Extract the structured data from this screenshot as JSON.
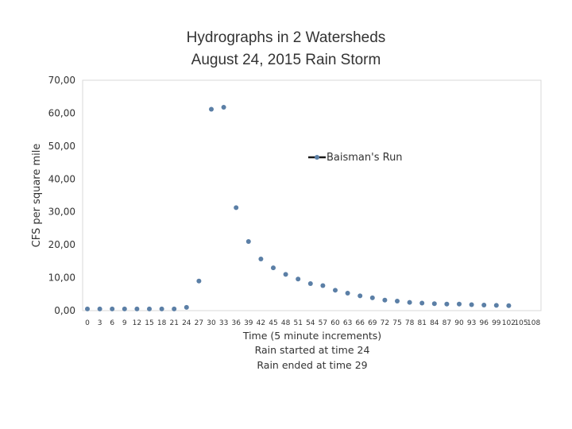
{
  "chart_data": {
    "type": "scatter",
    "title_lines": [
      "Hydrographs in 2 Watersheds",
      "August 24, 2015 Rain Storm"
    ],
    "ylabel": "CFS per square mile",
    "xlabel_lines": [
      "Time (5 minute increments)",
      "Rain started at time 24",
      "Rain ended at time 29"
    ],
    "ylim": [
      0,
      70
    ],
    "yticks": [
      0,
      10,
      20,
      30,
      40,
      50,
      60,
      70
    ],
    "ytick_labels": [
      "0,00",
      "10,00",
      "20,00",
      "30,00",
      "40,00",
      "50,00",
      "60,00",
      "70,00"
    ],
    "xlim": [
      0,
      108
    ],
    "xtick_labels": [
      "0",
      "3",
      "6",
      "9",
      "12",
      "15",
      "18",
      "21",
      "24",
      "27",
      "30",
      "33",
      "36",
      "39",
      "42",
      "45",
      "48",
      "51",
      "54",
      "57",
      "60",
      "63",
      "66",
      "69",
      "72",
      "75",
      "78",
      "81",
      "84",
      "87",
      "90",
      "93",
      "96",
      "99",
      "102",
      "105",
      "108"
    ],
    "grid": false,
    "legend_position": "upper-right",
    "series": [
      {
        "name": "Baisman's Run",
        "color": "#5b7fa6",
        "x": [
          0,
          3,
          6,
          9,
          12,
          15,
          18,
          21,
          24,
          27,
          30,
          33,
          36,
          39,
          42,
          45,
          48,
          51,
          54,
          57,
          60,
          63,
          66,
          69,
          72,
          75,
          78,
          81,
          84,
          87,
          90,
          93,
          96,
          99,
          102
        ],
        "y": [
          0.5,
          0.5,
          0.5,
          0.5,
          0.5,
          0.5,
          0.5,
          0.5,
          1.0,
          9.0,
          61.2,
          61.8,
          31.3,
          21.0,
          15.7,
          13.0,
          11.0,
          9.6,
          8.2,
          7.6,
          6.2,
          5.3,
          4.5,
          3.9,
          3.2,
          2.9,
          2.5,
          2.3,
          2.1,
          2.0,
          2.0,
          1.8,
          1.7,
          1.6,
          1.5
        ]
      }
    ]
  }
}
